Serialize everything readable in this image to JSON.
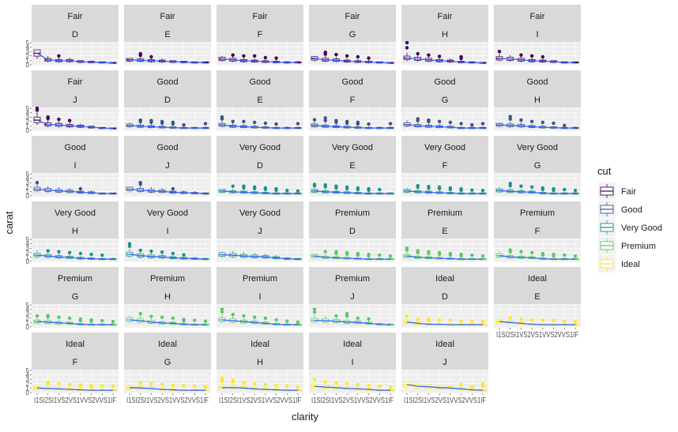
{
  "chart_data": {
    "type": "boxplot",
    "title": "",
    "xlabel": "clarity",
    "ylabel": "carat",
    "facet_rows": [
      "cut",
      "color"
    ],
    "x_categories": [
      "I1",
      "SI2",
      "SI1",
      "VS2",
      "VS1",
      "VVS2",
      "VVS1",
      "IF"
    ],
    "x_tick_text": "I1SI2SI1VS2VS1VVS2VVS1IF",
    "y_ticks": [
      0,
      1,
      2,
      3,
      4,
      5
    ],
    "ylim": [
      -0.2,
      5.2
    ],
    "legend": {
      "title": "cut",
      "placement": "right",
      "entries": [
        {
          "name": "Fair",
          "color": "#440154"
        },
        {
          "name": "Good",
          "color": "#3b528b"
        },
        {
          "name": "Very Good",
          "color": "#21908c"
        },
        {
          "name": "Premium",
          "color": "#5dc863"
        },
        {
          "name": "Ideal",
          "color": "#fde725"
        }
      ]
    },
    "smooth_color": "#3366ff",
    "panels": [
      {
        "cut": "Fair",
        "color": "D",
        "medians": [
          2.6,
          1.1,
          0.9,
          0.9,
          0.7,
          0.6,
          0.5,
          0.4
        ],
        "max_out": [
          3.4,
          2.0,
          2.0,
          1.6,
          1.0,
          0.9,
          0.7,
          0.5
        ]
      },
      {
        "cut": "Fair",
        "color": "E",
        "medians": [
          1.1,
          1.0,
          0.9,
          0.8,
          0.7,
          0.6,
          0.5,
          0.5
        ],
        "max_out": [
          1.3,
          2.5,
          1.8,
          1.5,
          1.0,
          0.8,
          0.7,
          0.6
        ]
      },
      {
        "cut": "Fair",
        "color": "F",
        "medians": [
          1.3,
          1.1,
          0.9,
          0.8,
          0.7,
          0.6,
          0.5,
          0.5
        ],
        "max_out": [
          2.0,
          2.2,
          2.0,
          2.0,
          1.6,
          1.5,
          0.8,
          1.0
        ]
      },
      {
        "cut": "Fair",
        "color": "G",
        "medians": [
          1.4,
          1.1,
          1.0,
          0.8,
          0.7,
          0.6,
          0.5,
          0.4
        ],
        "max_out": [
          2.0,
          2.8,
          2.3,
          2.0,
          1.8,
          1.5,
          0.7,
          0.5
        ]
      },
      {
        "cut": "Fair",
        "color": "H",
        "medians": [
          1.5,
          1.3,
          1.1,
          0.9,
          0.8,
          0.6,
          0.5,
          0.4
        ],
        "max_out": [
          5.0,
          2.5,
          2.2,
          1.9,
          1.5,
          1.8,
          0.8,
          0.5
        ]
      },
      {
        "cut": "Fair",
        "color": "I",
        "medians": [
          1.4,
          1.3,
          1.1,
          0.9,
          0.8,
          0.7,
          0.5,
          0.5
        ],
        "max_out": [
          3.0,
          2.2,
          2.2,
          2.0,
          1.8,
          1.0,
          0.6,
          0.5
        ]
      },
      {
        "cut": "Fair",
        "color": "J",
        "medians": [
          2.3,
          1.3,
          1.2,
          1.0,
          0.9,
          0.7,
          0.5,
          0.4
        ],
        "max_out": [
          5.0,
          3.0,
          2.5,
          2.2,
          1.5,
          1.0,
          0.6,
          0.5
        ]
      },
      {
        "cut": "Good",
        "color": "D",
        "medians": [
          1.1,
          0.9,
          0.8,
          0.7,
          0.6,
          0.5,
          0.5,
          0.5
        ],
        "max_out": [
          1.7,
          2.3,
          2.2,
          2.0,
          1.8,
          1.2,
          1.0,
          1.5
        ]
      },
      {
        "cut": "Good",
        "color": "E",
        "medians": [
          1.2,
          0.9,
          0.8,
          0.7,
          0.6,
          0.5,
          0.5,
          0.5
        ],
        "max_out": [
          3.0,
          2.0,
          2.0,
          1.8,
          1.6,
          1.4,
          1.0,
          1.5
        ]
      },
      {
        "cut": "Good",
        "color": "F",
        "medians": [
          1.1,
          0.9,
          0.8,
          0.7,
          0.6,
          0.5,
          0.5,
          0.5
        ],
        "max_out": [
          2.4,
          2.8,
          2.2,
          2.0,
          1.8,
          1.4,
          1.0,
          1.5
        ]
      },
      {
        "cut": "Good",
        "color": "G",
        "medians": [
          1.3,
          1.0,
          0.9,
          0.8,
          0.7,
          0.5,
          0.5,
          0.5
        ],
        "max_out": [
          2.3,
          2.6,
          2.3,
          2.0,
          1.8,
          1.5,
          1.2,
          1.5
        ]
      },
      {
        "cut": "Good",
        "color": "H",
        "medians": [
          1.2,
          1.1,
          1.0,
          0.8,
          0.7,
          0.6,
          0.5,
          0.5
        ],
        "max_out": [
          1.8,
          3.1,
          2.3,
          2.0,
          1.8,
          1.6,
          1.1,
          0.9
        ]
      },
      {
        "cut": "Good",
        "color": "I",
        "medians": [
          1.5,
          1.3,
          1.1,
          1.0,
          0.8,
          0.7,
          0.5,
          0.5
        ],
        "max_out": [
          3.0,
          2.2,
          2.0,
          1.8,
          1.6,
          1.3,
          0.8,
          0.6
        ]
      },
      {
        "cut": "Good",
        "color": "J",
        "medians": [
          1.5,
          1.3,
          1.1,
          1.0,
          0.8,
          0.7,
          0.6,
          0.5
        ],
        "max_out": [
          2.1,
          3.0,
          2.0,
          1.8,
          1.6,
          1.2,
          1.1,
          0.8
        ]
      },
      {
        "cut": "Very Good",
        "color": "D",
        "medians": [
          1.1,
          0.9,
          0.8,
          0.7,
          0.6,
          0.5,
          0.5,
          0.5
        ],
        "max_out": [
          1.5,
          2.2,
          2.2,
          2.0,
          1.8,
          1.6,
          1.2,
          1.1
        ]
      },
      {
        "cut": "Very Good",
        "color": "E",
        "medians": [
          1.1,
          0.9,
          0.8,
          0.7,
          0.6,
          0.5,
          0.5,
          0.5
        ],
        "max_out": [
          2.6,
          2.5,
          2.2,
          2.0,
          1.8,
          1.6,
          1.4,
          1.0
        ]
      },
      {
        "cut": "Very Good",
        "color": "F",
        "medians": [
          1.1,
          0.9,
          0.8,
          0.7,
          0.6,
          0.5,
          0.5,
          0.5
        ],
        "max_out": [
          1.8,
          2.3,
          2.1,
          2.0,
          1.8,
          1.6,
          1.3,
          1.2
        ]
      },
      {
        "cut": "Very Good",
        "color": "G",
        "medians": [
          1.2,
          1.0,
          0.9,
          0.8,
          0.6,
          0.5,
          0.5,
          0.5
        ],
        "max_out": [
          2.0,
          2.8,
          2.2,
          2.0,
          1.8,
          1.6,
          1.4,
          1.2
        ]
      },
      {
        "cut": "Very Good",
        "color": "H",
        "medians": [
          1.4,
          1.2,
          1.0,
          0.9,
          0.7,
          0.6,
          0.5,
          0.5
        ],
        "max_out": [
          2.6,
          2.4,
          2.2,
          2.0,
          1.8,
          1.6,
          1.4,
          1.0
        ]
      },
      {
        "cut": "Very Good",
        "color": "I",
        "medians": [
          1.6,
          1.3,
          1.1,
          1.0,
          0.8,
          0.7,
          0.6,
          0.5
        ],
        "max_out": [
          4.0,
          2.5,
          2.3,
          2.1,
          1.8,
          1.5,
          1.2,
          1.0
        ]
      },
      {
        "cut": "Very Good",
        "color": "J",
        "medians": [
          1.5,
          1.4,
          1.2,
          1.1,
          1.0,
          0.8,
          0.6,
          0.5
        ],
        "max_out": [
          2.3,
          2.4,
          2.2,
          2.0,
          1.8,
          1.5,
          1.0,
          0.8
        ]
      },
      {
        "cut": "Premium",
        "color": "D",
        "medians": [
          1.2,
          0.9,
          0.8,
          0.7,
          0.6,
          0.5,
          0.5,
          0.5
        ],
        "max_out": [
          1.8,
          2.2,
          2.2,
          2.0,
          1.8,
          1.6,
          1.4,
          1.2
        ]
      },
      {
        "cut": "Premium",
        "color": "E",
        "medians": [
          1.2,
          0.9,
          0.8,
          0.7,
          0.6,
          0.5,
          0.5,
          0.5
        ],
        "max_out": [
          3.0,
          2.4,
          2.2,
          2.0,
          1.8,
          1.6,
          1.4,
          1.2
        ]
      },
      {
        "cut": "Premium",
        "color": "F",
        "medians": [
          1.3,
          1.0,
          0.9,
          0.8,
          0.6,
          0.5,
          0.5,
          0.5
        ],
        "max_out": [
          2.4,
          2.6,
          2.2,
          2.0,
          1.8,
          1.6,
          1.4,
          1.2
        ]
      },
      {
        "cut": "Premium",
        "color": "G",
        "medians": [
          1.2,
          1.1,
          0.9,
          0.8,
          0.6,
          0.5,
          0.5,
          0.5
        ],
        "max_out": [
          2.5,
          2.6,
          2.2,
          2.0,
          1.8,
          1.6,
          1.4,
          1.2
        ]
      },
      {
        "cut": "Premium",
        "color": "H",
        "medians": [
          1.6,
          1.4,
          1.1,
          0.9,
          0.8,
          0.6,
          0.5,
          0.5
        ],
        "max_out": [
          2.6,
          3.0,
          2.4,
          2.2,
          2.0,
          1.7,
          1.5,
          1.3
        ]
      },
      {
        "cut": "Premium",
        "color": "I",
        "medians": [
          1.6,
          1.4,
          1.2,
          1.0,
          0.8,
          0.6,
          0.5,
          0.5
        ],
        "max_out": [
          4.0,
          2.8,
          2.5,
          2.2,
          2.0,
          1.6,
          1.3,
          1.1
        ]
      },
      {
        "cut": "Premium",
        "color": "J",
        "medians": [
          1.5,
          1.4,
          1.3,
          1.1,
          1.0,
          0.8,
          0.6,
          0.5
        ],
        "max_out": [
          4.0,
          2.6,
          2.5,
          3.0,
          2.0,
          1.8,
          1.2,
          1.0
        ]
      },
      {
        "cut": "Ideal",
        "color": "D",
        "medians": [
          1.1,
          0.8,
          0.6,
          0.6,
          0.5,
          0.5,
          0.5,
          0.5
        ],
        "max_out": [
          2.5,
          1.8,
          1.8,
          1.6,
          1.5,
          1.3,
          1.2,
          1.2
        ]
      },
      {
        "cut": "Ideal",
        "color": "E",
        "medians": [
          1.2,
          1.0,
          0.8,
          0.6,
          0.5,
          0.5,
          0.5,
          0.5
        ],
        "max_out": [
          2.0,
          2.1,
          1.8,
          1.6,
          1.5,
          1.4,
          1.3,
          1.2
        ]
      },
      {
        "cut": "Ideal",
        "color": "F",
        "medians": [
          1.0,
          0.9,
          0.8,
          0.7,
          0.6,
          0.5,
          0.5,
          0.5
        ],
        "max_out": [
          1.8,
          2.3,
          2.0,
          1.8,
          1.7,
          1.6,
          1.5,
          1.4
        ]
      },
      {
        "cut": "Ideal",
        "color": "G",
        "medians": [
          1.1,
          1.0,
          0.9,
          0.7,
          0.6,
          0.5,
          0.5,
          0.5
        ],
        "max_out": [
          1.8,
          2.2,
          2.0,
          1.8,
          1.6,
          1.5,
          1.4,
          1.3
        ]
      },
      {
        "cut": "Ideal",
        "color": "H",
        "medians": [
          1.1,
          1.1,
          1.0,
          0.8,
          0.7,
          0.6,
          0.5,
          0.5
        ],
        "max_out": [
          3.2,
          2.8,
          2.2,
          2.0,
          1.8,
          1.6,
          1.4,
          1.3
        ]
      },
      {
        "cut": "Ideal",
        "color": "I",
        "medians": [
          1.4,
          1.2,
          1.1,
          0.9,
          0.8,
          0.7,
          0.5,
          0.5
        ],
        "max_out": [
          3.0,
          2.4,
          2.2,
          2.0,
          1.8,
          1.6,
          1.4,
          1.2
        ]
      },
      {
        "cut": "Ideal",
        "color": "J",
        "medians": [
          1.8,
          1.4,
          1.3,
          1.1,
          1.0,
          0.8,
          0.6,
          0.5
        ],
        "max_out": [
          2.6,
          2.2,
          2.0,
          1.8,
          1.6,
          1.8,
          1.3,
          2.0
        ]
      }
    ]
  }
}
